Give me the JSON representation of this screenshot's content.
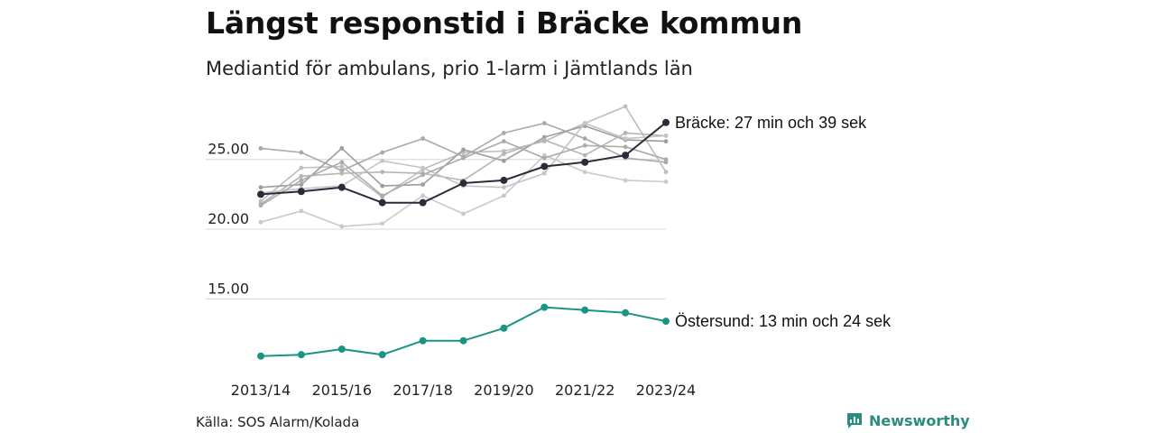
{
  "title": "Längst responstid i Bräcke kommun",
  "subtitle": "Mediantid för ambulans, prio 1-larm i Jämtlands län",
  "source": "Källa: SOS Alarm/Kolada",
  "brand": {
    "name": "Newsworthy",
    "icon": "newsworthy-logo-icon",
    "color": "#2a8c7e"
  },
  "colors": {
    "highlight": "#2b2b3a",
    "capital": "#1a9483",
    "other": [
      "#a9a9a9",
      "#bdbdbd",
      "#c9c9c9",
      "#9e9e9e",
      "#b5b5b5",
      "#c4c4c4",
      "#ababab"
    ],
    "grid": "#dddddd"
  },
  "chart_data": {
    "type": "line",
    "x": [
      "2013/14",
      "2014/15",
      "2015/16",
      "2016/17",
      "2017/18",
      "2018/19",
      "2019/20",
      "2020/21",
      "2021/22",
      "2022/23",
      "2023/24"
    ],
    "x_tick_labels": [
      "2013/14",
      "2015/16",
      "2017/18",
      "2019/20",
      "2021/22",
      "2023/24"
    ],
    "y_ticks": [
      15,
      20,
      25
    ],
    "y_tick_labels": [
      "15.00",
      "20.00",
      "25.00"
    ],
    "ylim": [
      10.3,
      28.8
    ],
    "grid": true,
    "xlabel": "",
    "ylabel": "",
    "highlighted": [
      {
        "name": "Bräcke",
        "label": "Bräcke: 27 min och 39 sek",
        "color": "#2b2b3a",
        "values": [
          22.5,
          22.7,
          23.0,
          21.9,
          21.9,
          23.3,
          23.5,
          24.5,
          24.8,
          25.3,
          27.65
        ]
      },
      {
        "name": "Östersund",
        "label": "Östersund: 13 min och 24 sek",
        "color": "#1a9483",
        "values": [
          10.9,
          11.0,
          11.4,
          11.0,
          12.0,
          12.0,
          12.9,
          14.4,
          14.2,
          14.0,
          13.4
        ]
      }
    ],
    "series": [
      {
        "values": [
          25.8,
          25.5,
          24.2,
          25.5,
          26.5,
          25.2,
          26.9,
          27.6,
          26.5,
          25.1,
          24.8
        ]
      },
      {
        "values": [
          22.0,
          24.4,
          24.5,
          22.3,
          24.3,
          25.5,
          25.6,
          26.3,
          27.6,
          28.8,
          24.1
        ]
      },
      {
        "values": [
          20.5,
          21.3,
          20.2,
          20.4,
          22.4,
          21.1,
          22.4,
          25.3,
          24.1,
          23.5,
          23.4
        ]
      },
      {
        "values": [
          23.0,
          23.2,
          25.8,
          23.1,
          23.2,
          25.7,
          24.9,
          26.6,
          27.4,
          26.4,
          26.3
        ]
      },
      {
        "values": [
          21.8,
          23.8,
          24.0,
          24.1,
          24.0,
          23.5,
          25.4,
          26.4,
          25.3,
          26.9,
          26.7
        ]
      },
      {
        "values": [
          22.6,
          22.9,
          23.1,
          24.9,
          24.4,
          23.1,
          23.0,
          24.0,
          27.6,
          26.5,
          26.7
        ]
      },
      {
        "values": [
          21.7,
          23.5,
          24.8,
          22.4,
          23.9,
          25.1,
          26.3,
          25.1,
          26.0,
          25.9,
          25.0
        ]
      }
    ]
  }
}
